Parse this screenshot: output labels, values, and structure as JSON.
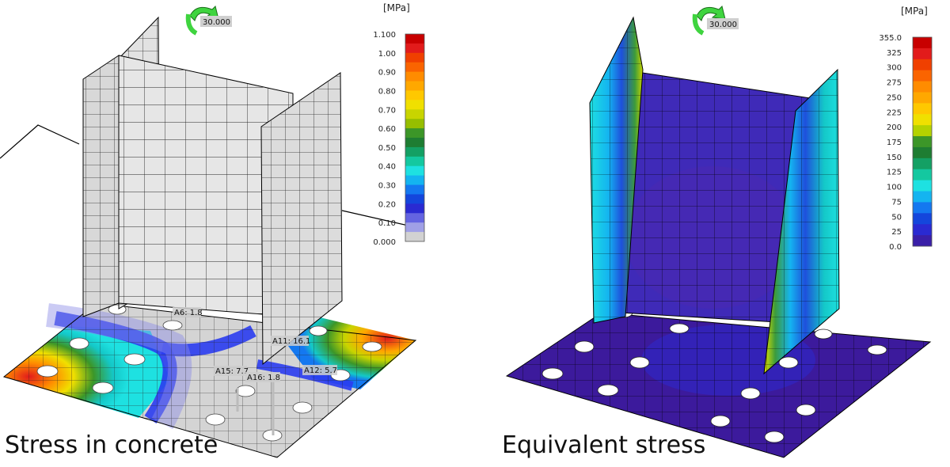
{
  "left_panel": {
    "caption": "Stress in concrete",
    "rotation_label": "30.000",
    "legend": {
      "unit": "[MPa]",
      "ticks": [
        "1.100",
        "1.00",
        "0.90",
        "0.80",
        "0.70",
        "0.60",
        "0.50",
        "0.40",
        "0.30",
        "0.20",
        "0.10",
        "0.000"
      ],
      "colors": [
        "#c80000",
        "#e21b1b",
        "#f04000",
        "#fa6400",
        "#ff8c00",
        "#ffa800",
        "#ffc800",
        "#f0e000",
        "#c8d400",
        "#96be00",
        "#3c9628",
        "#1e7d32",
        "#14a064",
        "#14c8a0",
        "#1ee1e1",
        "#14b4f0",
        "#1478f0",
        "#1446dc",
        "#2a2ad2",
        "#6464e1",
        "#a0a0e6",
        "#d2d2d2"
      ]
    },
    "anchors": [
      {
        "label": "A6: 1.8"
      },
      {
        "label": "A11: 16.1"
      },
      {
        "label": "A15: 7.7"
      },
      {
        "label": "A16: 1.8"
      },
      {
        "label": "A12: 5.7"
      }
    ]
  },
  "right_panel": {
    "caption": "Equivalent stress",
    "rotation_label": "30.000",
    "legend": {
      "unit": "[MPa]",
      "ticks": [
        "355.0",
        "325",
        "300",
        "275",
        "250",
        "225",
        "200",
        "175",
        "150",
        "125",
        "100",
        "75",
        "50",
        "25",
        "0.0"
      ],
      "colors": [
        "#c80000",
        "#e21b1b",
        "#f04000",
        "#fa6400",
        "#ff8c00",
        "#ffa800",
        "#ffc800",
        "#f0e000",
        "#b4d200",
        "#3c9628",
        "#1e7d32",
        "#14a064",
        "#14c8a0",
        "#1ee1e1",
        "#14b4f0",
        "#1478f0",
        "#1446dc",
        "#2a2ad2",
        "#3a1fa8"
      ]
    }
  }
}
